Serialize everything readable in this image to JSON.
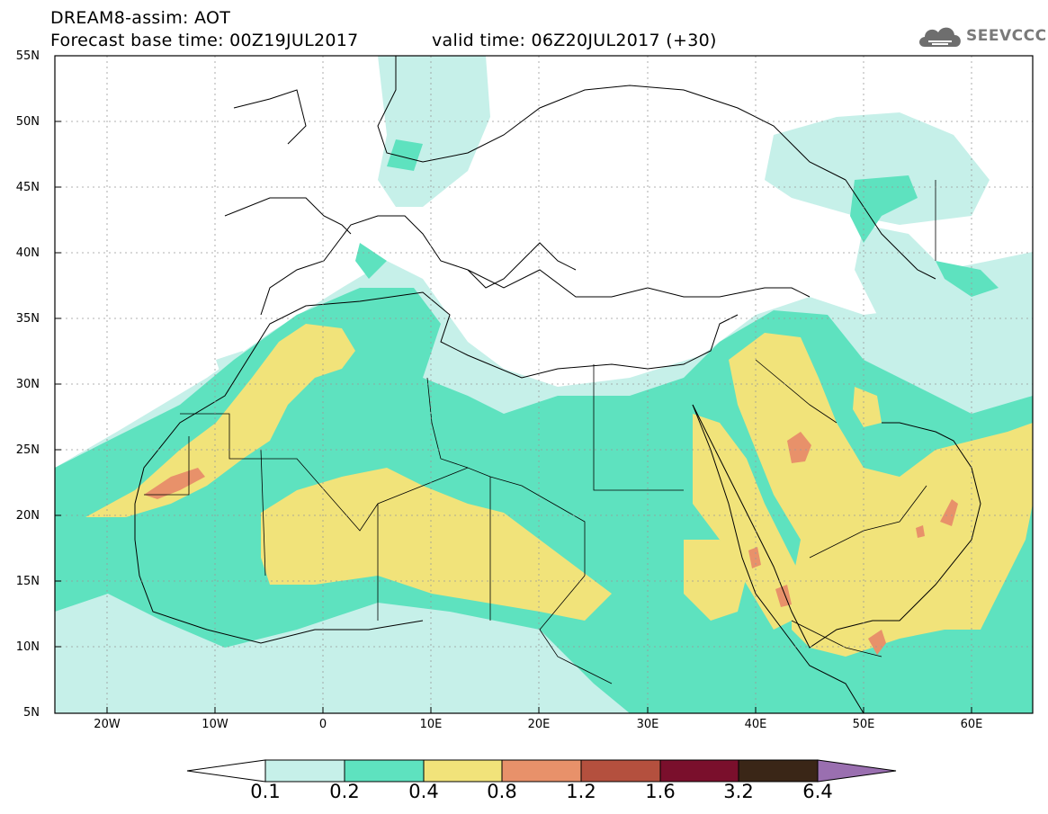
{
  "header": {
    "title_line1": "DREAM8-assim: AOT",
    "title_line2": "Forecast base time: 00Z19JUL2017",
    "valid_time": "valid time: 06Z20JUL2017 (+30)"
  },
  "logo": {
    "text": "SEEVCCC",
    "icon": "cloud-logo-icon"
  },
  "axes": {
    "lat_labels": [
      "55N",
      "50N",
      "45N",
      "40N",
      "35N",
      "30N",
      "25N",
      "20N",
      "15N",
      "10N",
      "5N"
    ],
    "lon_labels": [
      "20W",
      "10W",
      "0",
      "10E",
      "20E",
      "30E",
      "40E",
      "50E",
      "60E"
    ],
    "lon_range": [
      -25,
      65
    ],
    "lat_range": [
      5,
      55
    ],
    "grid": "dotted"
  },
  "colorbar": {
    "labels": [
      "0.1",
      "0.2",
      "0.4",
      "0.8",
      "1.2",
      "1.6",
      "3.2",
      "6.4"
    ],
    "colors": [
      "#ffffff",
      "#c6f0e9",
      "#5ee2bf",
      "#f1e37a",
      "#e8916a",
      "#b4503e",
      "#7a0f2c",
      "#3a2617",
      "#9a6fb0"
    ]
  }
}
